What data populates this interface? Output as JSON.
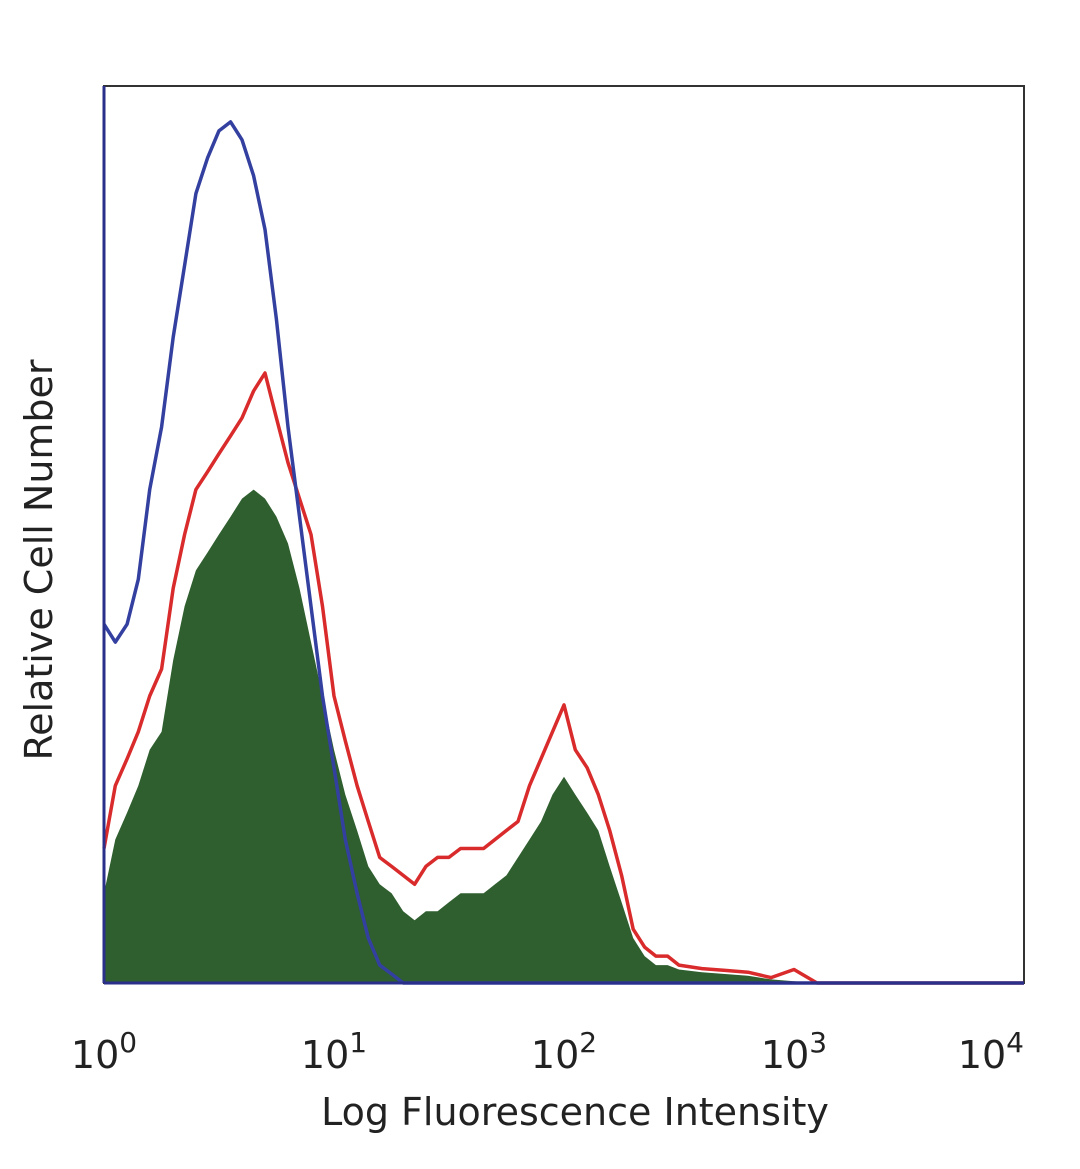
{
  "chart_data": {
    "type": "area",
    "xlabel": "Log Fluorescence Intensity",
    "ylabel": "Relative Cell Number",
    "x_scale": "log",
    "xlim": [
      1,
      10000
    ],
    "ylim": [
      0,
      100
    ],
    "grid": false,
    "x_ticks": [
      {
        "base": "10",
        "exp": "0"
      },
      {
        "base": "10",
        "exp": "1"
      },
      {
        "base": "10",
        "exp": "2"
      },
      {
        "base": "10",
        "exp": "3"
      },
      {
        "base": "10",
        "exp": "4"
      }
    ],
    "series": [
      {
        "style": "filled",
        "color": "#2f5e2f",
        "x": [
          1,
          1.12,
          1.26,
          1.41,
          1.58,
          1.78,
          2.0,
          2.24,
          2.51,
          2.82,
          3.16,
          3.55,
          3.98,
          4.47,
          5.01,
          5.62,
          6.31,
          7.08,
          7.94,
          8.91,
          10,
          11.2,
          12.6,
          14.1,
          15.8,
          17.8,
          20,
          22.4,
          25.1,
          28.2,
          31.6,
          35.5,
          39.8,
          44.7,
          50.1,
          56.2,
          63.1,
          70.8,
          79.4,
          89.1,
          100,
          112,
          126,
          141,
          158,
          178,
          200,
          224,
          251,
          282,
          316,
          398,
          501,
          631,
          794,
          1000,
          1259,
          10000
        ],
        "values": [
          10,
          16,
          19,
          22,
          26,
          28,
          36,
          42,
          46,
          48,
          50,
          52,
          54,
          55,
          54,
          52,
          49,
          44,
          38,
          32,
          26,
          21,
          17,
          13,
          11,
          10,
          8,
          7,
          8,
          8,
          9,
          10,
          10,
          10,
          11,
          12,
          14,
          16,
          18,
          21,
          23,
          21,
          19,
          17,
          13,
          9,
          5,
          3,
          2,
          2,
          1.5,
          1.2,
          1,
          0.8,
          0.4,
          0.2,
          0,
          0
        ]
      },
      {
        "style": "line",
        "color": "#d92b2b",
        "x": [
          1,
          1.12,
          1.26,
          1.41,
          1.58,
          1.78,
          2.0,
          2.24,
          2.51,
          2.82,
          3.16,
          3.55,
          3.98,
          4.47,
          5.01,
          5.62,
          6.31,
          7.08,
          7.94,
          8.91,
          10,
          11.2,
          12.6,
          14.1,
          15.8,
          17.8,
          20,
          22.4,
          25.1,
          28.2,
          31.6,
          35.5,
          39.8,
          44.7,
          50.1,
          56.2,
          63.1,
          70.8,
          79.4,
          89.1,
          100,
          112,
          126,
          141,
          158,
          178,
          200,
          224,
          251,
          282,
          316,
          398,
          501,
          631,
          794,
          1000,
          1259,
          10000
        ],
        "values": [
          15,
          22,
          25,
          28,
          32,
          35,
          44,
          50,
          55,
          57,
          59,
          61,
          63,
          66,
          68,
          63,
          58,
          54,
          50,
          42,
          32,
          27,
          22,
          18,
          14,
          13,
          12,
          11,
          13,
          14,
          14,
          15,
          15,
          15,
          16,
          17,
          18,
          22,
          25,
          28,
          31,
          26,
          24,
          21,
          17,
          12,
          6,
          4,
          3,
          3,
          2,
          1.6,
          1.4,
          1.2,
          0.6,
          1.5,
          0,
          0
        ]
      },
      {
        "style": "line",
        "color": "#3340a0",
        "x": [
          1,
          1.12,
          1.26,
          1.41,
          1.58,
          1.78,
          2.0,
          2.24,
          2.51,
          2.82,
          3.16,
          3.55,
          3.98,
          4.47,
          5.01,
          5.62,
          6.31,
          7.08,
          7.94,
          8.91,
          10,
          11.2,
          12.6,
          14.1,
          15.8,
          17.8,
          20,
          10000
        ],
        "values": [
          40,
          38,
          40,
          45,
          55,
          62,
          72,
          80,
          88,
          92,
          95,
          96,
          94,
          90,
          84,
          74,
          62,
          52,
          42,
          32,
          24,
          16,
          10,
          5,
          2,
          1,
          0,
          0
        ]
      }
    ]
  }
}
